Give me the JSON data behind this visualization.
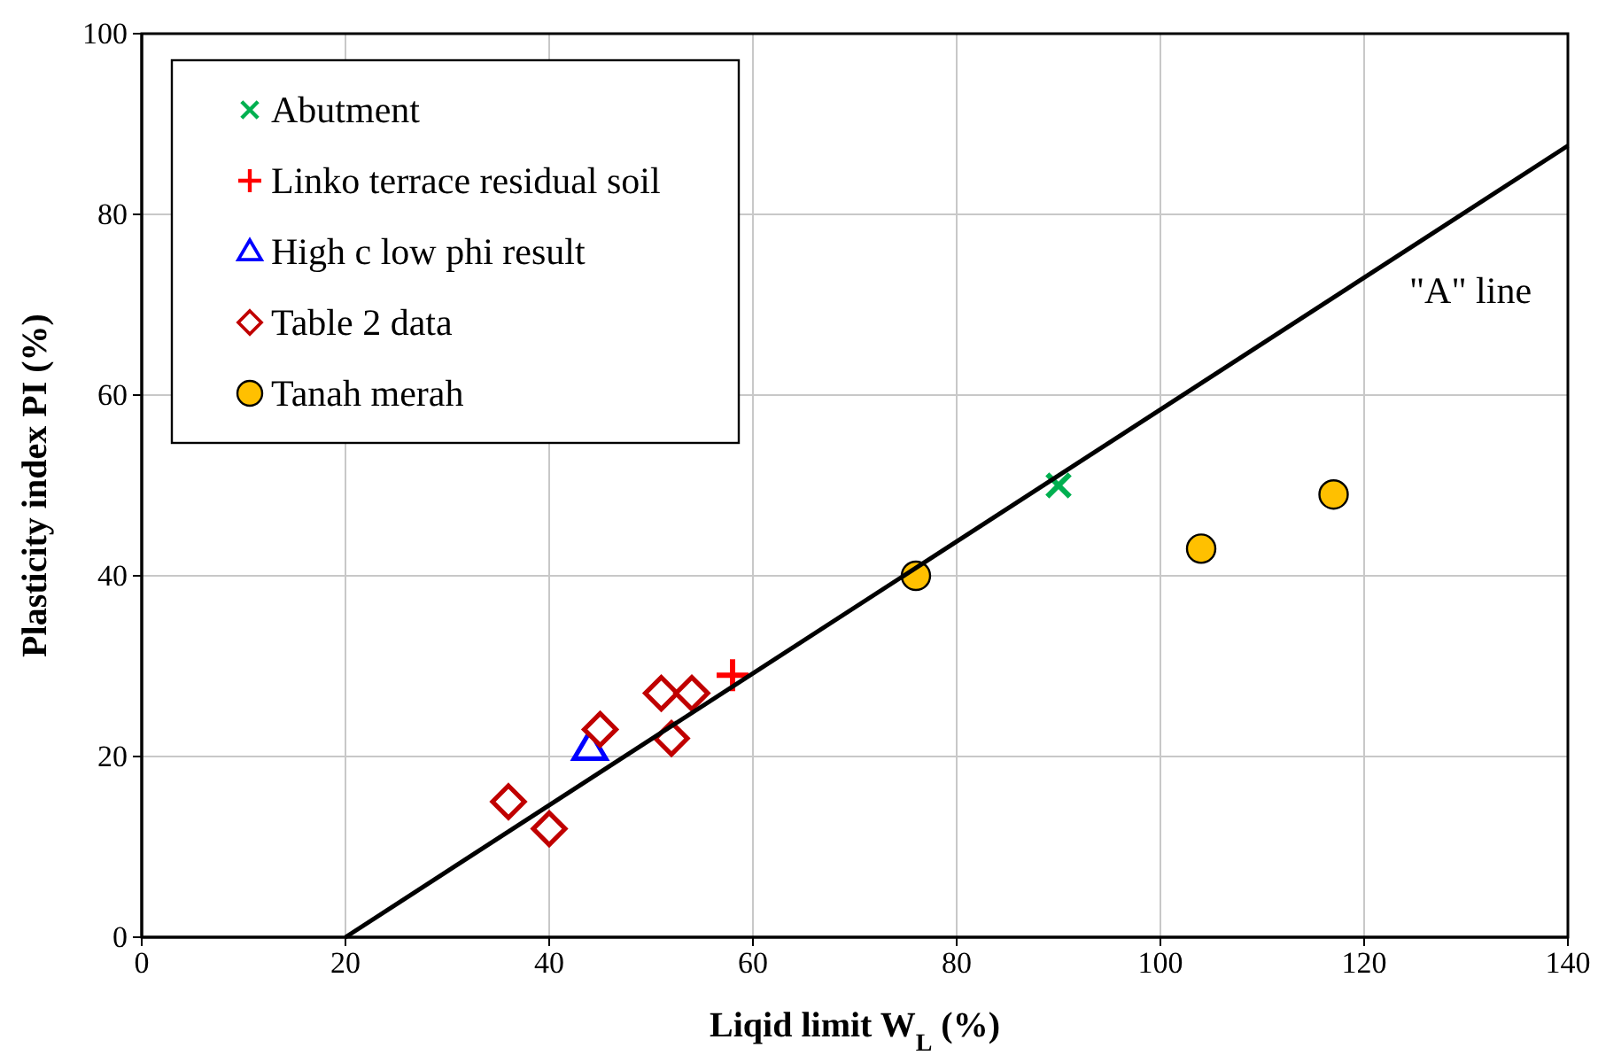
{
  "chart_data": {
    "type": "scatter",
    "xlabel": "Liqid limit W$_{L}$ (%)",
    "ylabel": "Plasticity index PI  (%)",
    "xlim": [
      0,
      140
    ],
    "xticks": [
      0,
      20,
      40,
      60,
      80,
      100,
      120,
      140
    ],
    "ylim": [
      0,
      100
    ],
    "yticks": [
      0,
      20,
      40,
      60,
      80,
      100
    ],
    "grid": true,
    "legend": "top left",
    "series": [
      {
        "name": "Abutment",
        "color": "#00b050",
        "marker": "x",
        "x": [
          90
        ],
        "values": [
          50
        ]
      },
      {
        "name": "Linko terrace residual soil",
        "color": "#ff0000",
        "marker": "cross",
        "x": [
          58
        ],
        "values": [
          29
        ]
      },
      {
        "name": "High c low phi result",
        "color": "#0000ff",
        "marker": "triangle",
        "x": [
          44
        ],
        "values": [
          21
        ]
      },
      {
        "name": "Table 2 data",
        "color": "#c00000",
        "marker": "diamond",
        "x": [
          36,
          40,
          45,
          51,
          54,
          52
        ],
        "values": [
          15,
          12,
          23,
          27,
          27,
          22
        ]
      },
      {
        "name": "Tanah merah",
        "color": "#ffc000",
        "marker": "circle",
        "x": [
          76,
          104,
          117
        ],
        "values": [
          40,
          43,
          49
        ]
      },
      {
        "type": "line",
        "color": "#000000",
        "marker": "none",
        "x": [
          20,
          140
        ],
        "values": [
          0,
          87.6
        ]
      }
    ],
    "annotations": [
      "\"A\" line"
    ]
  }
}
